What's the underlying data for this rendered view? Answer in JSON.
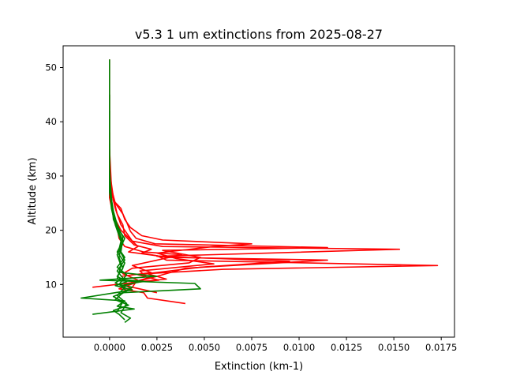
{
  "chart_data": {
    "type": "line",
    "title": "v5.3 1 um extinctions from 2025-08-27",
    "xlabel": "Extinction (km-1)",
    "ylabel": "Altitude (km)",
    "xlim": [
      -0.00245,
      0.0182
    ],
    "ylim": [
      0.3,
      54.0
    ],
    "grid": false,
    "x_ticks": [
      0.0,
      0.0025,
      0.005,
      0.0075,
      0.01,
      0.0125,
      0.015,
      0.0175
    ],
    "x_tick_labels": [
      "0.0000",
      "0.0025",
      "0.0050",
      "0.0075",
      "0.0100",
      "0.0125",
      "0.0150",
      "0.0175"
    ],
    "y_ticks": [
      10,
      20,
      30,
      40,
      50
    ],
    "y_tick_labels": [
      "10",
      "20",
      "30",
      "40",
      "50"
    ],
    "series": [
      {
        "color": "#ff0000",
        "points": [
          [
            0.004,
            6.5
          ],
          [
            0.002,
            7.5
          ],
          [
            0.0018,
            8.5
          ],
          [
            0.0005,
            9.2
          ],
          [
            0.0015,
            10.5
          ],
          [
            0.003,
            11.0
          ],
          [
            0.002,
            12.0
          ],
          [
            0.006,
            12.8
          ],
          [
            0.0173,
            13.5
          ],
          [
            0.003,
            14.5
          ],
          [
            0.0025,
            15.3
          ],
          [
            0.001,
            16.0
          ],
          [
            0.0015,
            17.0
          ],
          [
            0.0012,
            18.0
          ],
          [
            0.0006,
            20.0
          ],
          [
            0.0003,
            22.0
          ],
          [
            0.0001,
            25.0
          ],
          [
            0.0,
            30.0
          ],
          [
            0.0,
            40.0
          ],
          [
            0.0,
            51.5
          ]
        ]
      },
      {
        "color": "#ff0000",
        "points": [
          [
            0.0025,
            8.5
          ],
          [
            0.0012,
            9.5
          ],
          [
            0.0014,
            10.5
          ],
          [
            0.0025,
            11.5
          ],
          [
            0.004,
            13.0
          ],
          [
            0.0115,
            14.5
          ],
          [
            0.003,
            15.0
          ],
          [
            0.0017,
            15.8
          ],
          [
            0.0022,
            16.5
          ],
          [
            0.0013,
            17.3
          ],
          [
            0.0008,
            19.0
          ],
          [
            0.0007,
            21.0
          ],
          [
            0.0004,
            23.0
          ],
          [
            0.0002,
            26.0
          ],
          [
            0.0,
            31.0
          ],
          [
            0.0,
            45.0
          ]
        ]
      },
      {
        "color": "#ff0000",
        "points": [
          [
            -0.0009,
            9.5
          ],
          [
            0.0008,
            10.2
          ],
          [
            0.0026,
            10.8
          ],
          [
            0.0015,
            11.8
          ],
          [
            0.0048,
            13.2
          ],
          [
            0.0095,
            14.3
          ],
          [
            0.0025,
            15.2
          ],
          [
            0.0153,
            16.5
          ],
          [
            0.0028,
            17.0
          ],
          [
            0.0012,
            18.0
          ],
          [
            0.0009,
            19.5
          ],
          [
            0.0006,
            21.0
          ],
          [
            0.0003,
            24.0
          ],
          [
            0.0001,
            27.0
          ],
          [
            0.0,
            33.0
          ]
        ]
      },
      {
        "color": "#ff0000",
        "points": [
          [
            0.0012,
            9.0
          ],
          [
            0.0008,
            10.0
          ],
          [
            0.002,
            11.2
          ],
          [
            0.0016,
            12.5
          ],
          [
            0.0055,
            13.8
          ],
          [
            0.0035,
            14.8
          ],
          [
            0.0025,
            15.8
          ],
          [
            0.0055,
            17.0
          ],
          [
            0.0075,
            17.5
          ],
          [
            0.0028,
            18.2
          ],
          [
            0.0017,
            19.0
          ],
          [
            0.0011,
            20.5
          ],
          [
            0.0008,
            22.0
          ],
          [
            0.0006,
            24.0
          ],
          [
            0.0002,
            25.5
          ],
          [
            0.0001,
            28.0
          ],
          [
            0.0,
            35.0
          ]
        ]
      },
      {
        "color": "#ff0000",
        "points": [
          [
            0.0015,
            10.8
          ],
          [
            0.0007,
            12.0
          ],
          [
            0.0012,
            13.0
          ],
          [
            0.0042,
            14.0
          ],
          [
            0.0048,
            15.0
          ],
          [
            0.0028,
            16.3
          ],
          [
            0.0115,
            16.8
          ],
          [
            0.0024,
            17.5
          ],
          [
            0.0014,
            18.5
          ],
          [
            0.0011,
            19.8
          ],
          [
            0.0009,
            21.5
          ],
          [
            0.0007,
            23.0
          ],
          [
            0.0003,
            25.0
          ],
          [
            0.0,
            29.0
          ],
          [
            0.0,
            38.0
          ]
        ]
      },
      {
        "color": "#ff0000",
        "points": [
          [
            0.0006,
            11.5
          ],
          [
            0.0022,
            12.2
          ],
          [
            0.0012,
            13.5
          ],
          [
            0.0038,
            15.5
          ],
          [
            0.0018,
            16.0
          ],
          [
            0.0008,
            17.0
          ],
          [
            0.0005,
            18.5
          ],
          [
            0.0004,
            20.5
          ],
          [
            0.0002,
            22.5
          ],
          [
            0.0,
            26.0
          ],
          [
            0.0,
            32.0
          ]
        ]
      },
      {
        "color": "#008000",
        "points": [
          [
            -0.0009,
            4.5
          ],
          [
            0.0013,
            5.5
          ],
          [
            0.0004,
            6.0
          ],
          [
            0.0008,
            7.0
          ],
          [
            -0.0015,
            7.5
          ],
          [
            0.0003,
            8.5
          ],
          [
            0.0012,
            9.0
          ],
          [
            0.0003,
            9.8
          ],
          [
            0.0009,
            10.5
          ],
          [
            0.0004,
            11.5
          ],
          [
            0.0007,
            13.0
          ],
          [
            0.0005,
            15.0
          ],
          [
            0.0006,
            17.0
          ],
          [
            0.0008,
            18.5
          ],
          [
            0.0005,
            20.0
          ],
          [
            0.0003,
            22.0
          ],
          [
            0.0001,
            25.0
          ],
          [
            0.0,
            30.0
          ],
          [
            0.0,
            40.0
          ],
          [
            0.0,
            51.5
          ]
        ]
      },
      {
        "color": "#008000",
        "points": [
          [
            0.0008,
            3.5
          ],
          [
            0.0005,
            4.5
          ],
          [
            0.0002,
            5.2
          ],
          [
            0.001,
            6.2
          ],
          [
            0.0003,
            7.2
          ],
          [
            0.0007,
            8.5
          ],
          [
            0.0048,
            9.2
          ],
          [
            0.0045,
            10.2
          ],
          [
            -0.0005,
            10.8
          ],
          [
            0.0025,
            11.5
          ],
          [
            0.0006,
            12.2
          ],
          [
            0.0008,
            14.0
          ],
          [
            0.0004,
            16.0
          ],
          [
            0.0007,
            18.0
          ],
          [
            0.0004,
            20.5
          ],
          [
            0.0002,
            23.0
          ],
          [
            0.0,
            27.0
          ],
          [
            0.0,
            45.0
          ]
        ]
      },
      {
        "color": "#008000",
        "points": [
          [
            0.0008,
            3.0
          ],
          [
            0.0011,
            3.8
          ],
          [
            0.0006,
            4.8
          ],
          [
            0.0009,
            6.5
          ],
          [
            0.0004,
            8.0
          ],
          [
            0.0008,
            9.5
          ],
          [
            0.0003,
            10.3
          ],
          [
            0.0007,
            11.2
          ],
          [
            0.0004,
            12.5
          ],
          [
            0.0008,
            14.5
          ],
          [
            0.0005,
            16.5
          ],
          [
            0.0006,
            18.0
          ],
          [
            0.0003,
            21.0
          ],
          [
            0.0001,
            24.0
          ],
          [
            0.0,
            29.0
          ],
          [
            0.0,
            42.0
          ]
        ]
      },
      {
        "color": "#008000",
        "points": [
          [
            0.0004,
            5.0
          ],
          [
            0.0007,
            6.8
          ],
          [
            0.0002,
            7.8
          ],
          [
            0.0009,
            8.8
          ],
          [
            0.0006,
            9.8
          ],
          [
            0.0018,
            10.6
          ],
          [
            0.0004,
            11.0
          ],
          [
            0.0006,
            13.5
          ],
          [
            0.0004,
            15.5
          ],
          [
            0.0007,
            17.5
          ],
          [
            0.0005,
            19.5
          ],
          [
            0.0002,
            22.0
          ],
          [
            0.0001,
            26.0
          ],
          [
            0.0,
            31.0
          ]
        ]
      },
      {
        "color": "#008000",
        "points": [
          [
            0.0006,
            8.2
          ],
          [
            0.0012,
            9.5
          ],
          [
            0.0005,
            10.0
          ],
          [
            0.0009,
            11.8
          ],
          [
            0.0004,
            13.2
          ],
          [
            0.0008,
            15.0
          ],
          [
            0.0006,
            16.0
          ],
          [
            0.0007,
            18.8
          ],
          [
            0.0004,
            21.0
          ],
          [
            0.0002,
            23.5
          ],
          [
            0.0,
            28.0
          ],
          [
            0.0,
            36.0
          ]
        ]
      }
    ]
  }
}
